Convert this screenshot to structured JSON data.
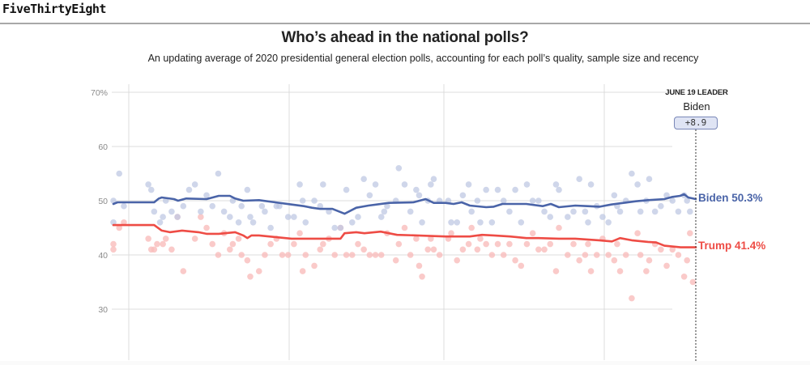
{
  "header": {
    "brand": "FiveThirtyEight"
  },
  "chart_data": {
    "type": "line",
    "title": "Who’s ahead in the national polls?",
    "subtitle": "An updating average of 2020 presidential general election polls, accounting for each poll’s quality, sample size and recency",
    "xlabel": "",
    "ylabel": "",
    "ylim": [
      27,
      71
    ],
    "yticks": [
      {
        "value": 70,
        "label": "70%"
      },
      {
        "value": 60,
        "label": "60"
      },
      {
        "value": 50,
        "label": "50"
      },
      {
        "value": 40,
        "label": "40"
      },
      {
        "value": 30,
        "label": "30"
      }
    ],
    "x_gridlines": [
      0.03,
      0.305,
      0.57,
      0.845
    ],
    "grid": true,
    "leader": {
      "date_label": "JUNE 19 LEADER",
      "name": "Biden",
      "margin": "+8.9"
    },
    "colors": {
      "biden_line": "#4a64a8",
      "trump_line": "#ee4c45",
      "biden_dot": "#bfc8e3",
      "trump_dot": "#f9bdbb",
      "overlap_dot": "#b88a9a"
    },
    "series": [
      {
        "name": "Biden",
        "end_label": "Biden 50.3%",
        "final_value": 50.3,
        "x": [
          0,
          0.007,
          0.07,
          0.078,
          0.083,
          0.104,
          0.111,
          0.125,
          0.16,
          0.181,
          0.2,
          0.209,
          0.223,
          0.25,
          0.278,
          0.306,
          0.327,
          0.341,
          0.355,
          0.376,
          0.39,
          0.397,
          0.417,
          0.438,
          0.473,
          0.515,
          0.536,
          0.55,
          0.57,
          0.584,
          0.598,
          0.612,
          0.64,
          0.653,
          0.668,
          0.681,
          0.709,
          0.737,
          0.751,
          0.758,
          0.765,
          0.793,
          0.814,
          0.835,
          0.855,
          0.876,
          0.897,
          0.918,
          0.946,
          0.96,
          0.973,
          0.98,
          0.987,
          1.0
        ],
        "values": [
          49.4,
          49.7,
          49.7,
          50.4,
          50.6,
          50.3,
          50.0,
          50.4,
          50.3,
          50.9,
          50.9,
          50.4,
          50.0,
          50.1,
          49.7,
          49.3,
          49.0,
          48.7,
          48.5,
          48.5,
          47.9,
          47.6,
          48.7,
          49.1,
          49.6,
          49.7,
          50.3,
          49.6,
          49.6,
          49.4,
          49.7,
          49.1,
          48.8,
          48.9,
          49.4,
          49.4,
          49.4,
          49.0,
          49.4,
          49.1,
          48.8,
          49.1,
          49.0,
          48.9,
          49.3,
          49.6,
          49.9,
          50.1,
          50.3,
          50.7,
          50.9,
          51.2,
          50.6,
          50.3
        ]
      },
      {
        "name": "Trump",
        "end_label": "Trump 41.4%",
        "final_value": 41.4,
        "x": [
          0,
          0.07,
          0.083,
          0.097,
          0.118,
          0.146,
          0.16,
          0.181,
          0.209,
          0.223,
          0.23,
          0.237,
          0.25,
          0.278,
          0.306,
          0.334,
          0.39,
          0.397,
          0.417,
          0.431,
          0.459,
          0.487,
          0.521,
          0.57,
          0.612,
          0.633,
          0.653,
          0.681,
          0.709,
          0.73,
          0.765,
          0.793,
          0.834,
          0.856,
          0.87,
          0.89,
          0.918,
          0.932,
          0.946,
          0.974,
          1.0
        ],
        "values": [
          45.5,
          45.5,
          44.5,
          44.2,
          44.5,
          44.2,
          43.9,
          43.9,
          44.2,
          43.6,
          43.1,
          43.6,
          43.6,
          43.3,
          43.0,
          43.0,
          43.0,
          44.0,
          44.2,
          44.0,
          44.3,
          43.7,
          43.6,
          43.4,
          43.4,
          43.7,
          43.6,
          43.4,
          43.1,
          43.1,
          43.0,
          43.0,
          42.7,
          42.5,
          43.1,
          42.7,
          42.4,
          42.3,
          41.7,
          41.4,
          41.4
        ]
      }
    ],
    "polls": {
      "Biden": [
        [
          0.0,
          50
        ],
        [
          0.0,
          46
        ],
        [
          0.01,
          55
        ],
        [
          0.018,
          49
        ],
        [
          0.06,
          53
        ],
        [
          0.065,
          52
        ],
        [
          0.07,
          48
        ],
        [
          0.08,
          46
        ],
        [
          0.085,
          47
        ],
        [
          0.09,
          50
        ],
        [
          0.1,
          48
        ],
        [
          0.11,
          47
        ],
        [
          0.12,
          49
        ],
        [
          0.13,
          52
        ],
        [
          0.14,
          53
        ],
        [
          0.15,
          48
        ],
        [
          0.16,
          51
        ],
        [
          0.17,
          49
        ],
        [
          0.18,
          55
        ],
        [
          0.19,
          48
        ],
        [
          0.2,
          47
        ],
        [
          0.205,
          50
        ],
        [
          0.215,
          46
        ],
        [
          0.22,
          49
        ],
        [
          0.23,
          52
        ],
        [
          0.235,
          47
        ],
        [
          0.24,
          46
        ],
        [
          0.255,
          49
        ],
        [
          0.26,
          48
        ],
        [
          0.27,
          45
        ],
        [
          0.28,
          49
        ],
        [
          0.285,
          49
        ],
        [
          0.3,
          47
        ],
        [
          0.31,
          47
        ],
        [
          0.32,
          53
        ],
        [
          0.325,
          50
        ],
        [
          0.33,
          46
        ],
        [
          0.345,
          50
        ],
        [
          0.355,
          49
        ],
        [
          0.36,
          53
        ],
        [
          0.37,
          48
        ],
        [
          0.38,
          45
        ],
        [
          0.39,
          45
        ],
        [
          0.4,
          52
        ],
        [
          0.41,
          46
        ],
        [
          0.42,
          47
        ],
        [
          0.43,
          54
        ],
        [
          0.44,
          51
        ],
        [
          0.45,
          53
        ],
        [
          0.46,
          47
        ],
        [
          0.465,
          48
        ],
        [
          0.47,
          49
        ],
        [
          0.485,
          50
        ],
        [
          0.49,
          56
        ],
        [
          0.5,
          53
        ],
        [
          0.51,
          48
        ],
        [
          0.52,
          52
        ],
        [
          0.525,
          51
        ],
        [
          0.53,
          46
        ],
        [
          0.54,
          50
        ],
        [
          0.545,
          53
        ],
        [
          0.55,
          54
        ],
        [
          0.56,
          50
        ],
        [
          0.575,
          50
        ],
        [
          0.58,
          46
        ],
        [
          0.59,
          46
        ],
        [
          0.6,
          51
        ],
        [
          0.61,
          53
        ],
        [
          0.615,
          48
        ],
        [
          0.625,
          50
        ],
        [
          0.63,
          46
        ],
        [
          0.64,
          52
        ],
        [
          0.65,
          46
        ],
        [
          0.66,
          52
        ],
        [
          0.67,
          50
        ],
        [
          0.68,
          48
        ],
        [
          0.69,
          52
        ],
        [
          0.7,
          46
        ],
        [
          0.71,
          53
        ],
        [
          0.72,
          50
        ],
        [
          0.73,
          50
        ],
        [
          0.74,
          48
        ],
        [
          0.75,
          47
        ],
        [
          0.76,
          53
        ],
        [
          0.765,
          52
        ],
        [
          0.78,
          47
        ],
        [
          0.79,
          48
        ],
        [
          0.8,
          54
        ],
        [
          0.81,
          48
        ],
        [
          0.815,
          46
        ],
        [
          0.82,
          53
        ],
        [
          0.83,
          49
        ],
        [
          0.84,
          47
        ],
        [
          0.85,
          46
        ],
        [
          0.86,
          51
        ],
        [
          0.865,
          49
        ],
        [
          0.87,
          48
        ],
        [
          0.88,
          50
        ],
        [
          0.89,
          55
        ],
        [
          0.9,
          53
        ],
        [
          0.905,
          48
        ],
        [
          0.915,
          50
        ],
        [
          0.92,
          54
        ],
        [
          0.93,
          48
        ],
        [
          0.94,
          49
        ],
        [
          0.95,
          51
        ],
        [
          0.96,
          50
        ],
        [
          0.97,
          48
        ],
        [
          0.98,
          51
        ],
        [
          0.985,
          50
        ],
        [
          0.99,
          48
        ]
      ],
      "Trump": [
        [
          0.0,
          42
        ],
        [
          0.0,
          41
        ],
        [
          0.01,
          45
        ],
        [
          0.018,
          46
        ],
        [
          0.06,
          43
        ],
        [
          0.065,
          41
        ],
        [
          0.07,
          41
        ],
        [
          0.075,
          42
        ],
        [
          0.085,
          42
        ],
        [
          0.09,
          43
        ],
        [
          0.1,
          41
        ],
        [
          0.11,
          47
        ],
        [
          0.12,
          37
        ],
        [
          0.14,
          43
        ],
        [
          0.15,
          47
        ],
        [
          0.16,
          45
        ],
        [
          0.17,
          42
        ],
        [
          0.18,
          40
        ],
        [
          0.19,
          44
        ],
        [
          0.2,
          41
        ],
        [
          0.205,
          42
        ],
        [
          0.215,
          43
        ],
        [
          0.22,
          40
        ],
        [
          0.23,
          39
        ],
        [
          0.235,
          36
        ],
        [
          0.25,
          37
        ],
        [
          0.26,
          40
        ],
        [
          0.27,
          42
        ],
        [
          0.28,
          43
        ],
        [
          0.29,
          40
        ],
        [
          0.3,
          40
        ],
        [
          0.31,
          42
        ],
        [
          0.32,
          44
        ],
        [
          0.325,
          37
        ],
        [
          0.33,
          40
        ],
        [
          0.345,
          38
        ],
        [
          0.355,
          41
        ],
        [
          0.36,
          42
        ],
        [
          0.37,
          43
        ],
        [
          0.38,
          40
        ],
        [
          0.39,
          45
        ],
        [
          0.4,
          40
        ],
        [
          0.41,
          40
        ],
        [
          0.42,
          42
        ],
        [
          0.43,
          41
        ],
        [
          0.44,
          40
        ],
        [
          0.45,
          40
        ],
        [
          0.46,
          40
        ],
        [
          0.47,
          44
        ],
        [
          0.485,
          39
        ],
        [
          0.49,
          42
        ],
        [
          0.5,
          45
        ],
        [
          0.51,
          40
        ],
        [
          0.52,
          43
        ],
        [
          0.525,
          38
        ],
        [
          0.53,
          36
        ],
        [
          0.54,
          41
        ],
        [
          0.545,
          43
        ],
        [
          0.55,
          41
        ],
        [
          0.56,
          40
        ],
        [
          0.575,
          43
        ],
        [
          0.58,
          44
        ],
        [
          0.59,
          39
        ],
        [
          0.6,
          41
        ],
        [
          0.61,
          42
        ],
        [
          0.615,
          45
        ],
        [
          0.625,
          41
        ],
        [
          0.63,
          43
        ],
        [
          0.64,
          42
        ],
        [
          0.65,
          40
        ],
        [
          0.66,
          42
        ],
        [
          0.67,
          40
        ],
        [
          0.68,
          42
        ],
        [
          0.69,
          39
        ],
        [
          0.7,
          38
        ],
        [
          0.71,
          42
        ],
        [
          0.72,
          44
        ],
        [
          0.73,
          41
        ],
        [
          0.74,
          41
        ],
        [
          0.75,
          42
        ],
        [
          0.76,
          37
        ],
        [
          0.765,
          45
        ],
        [
          0.78,
          40
        ],
        [
          0.79,
          42
        ],
        [
          0.8,
          39
        ],
        [
          0.81,
          40
        ],
        [
          0.815,
          42
        ],
        [
          0.82,
          37
        ],
        [
          0.83,
          40
        ],
        [
          0.84,
          43
        ],
        [
          0.85,
          40
        ],
        [
          0.86,
          39
        ],
        [
          0.865,
          42
        ],
        [
          0.87,
          37
        ],
        [
          0.88,
          40
        ],
        [
          0.89,
          32
        ],
        [
          0.9,
          44
        ],
        [
          0.905,
          40
        ],
        [
          0.915,
          37
        ],
        [
          0.92,
          39
        ],
        [
          0.93,
          42
        ],
        [
          0.94,
          41
        ],
        [
          0.95,
          38
        ],
        [
          0.96,
          41
        ],
        [
          0.97,
          40
        ],
        [
          0.98,
          36
        ],
        [
          0.985,
          39
        ],
        [
          0.99,
          44
        ],
        [
          0.995,
          35
        ]
      ]
    }
  }
}
